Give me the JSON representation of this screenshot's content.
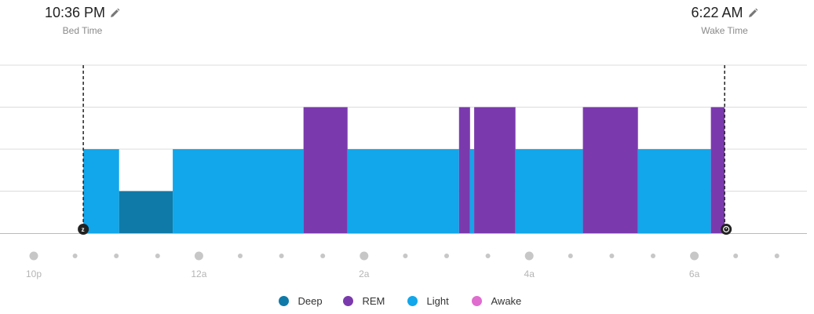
{
  "bed_time": {
    "value": "10:36 PM",
    "label": "Bed Time"
  },
  "wake_time": {
    "value": "6:22 AM",
    "label": "Wake Time"
  },
  "colors": {
    "deep": "#0f7aa8",
    "rem": "#7a3aad",
    "light": "#12a6ea",
    "awake": "#e06ccf",
    "grid": "#dcdcdc",
    "axis": "#bbbbbb",
    "tick_dot": "#c7c7c7"
  },
  "legend": [
    {
      "key": "deep",
      "label": "Deep",
      "color": "#0f7aa8"
    },
    {
      "key": "rem",
      "label": "REM",
      "color": "#7a3aad"
    },
    {
      "key": "light",
      "label": "Light",
      "color": "#12a6ea"
    },
    {
      "key": "awake",
      "label": "Awake",
      "color": "#e06ccf"
    }
  ],
  "chart_data": {
    "type": "bar",
    "title": "",
    "xlabel": "",
    "ylabel": "",
    "x_unit": "hours",
    "x_range": [
      "10p",
      "7:30a"
    ],
    "tick_labels": [
      "10p",
      "12a",
      "2a",
      "4a",
      "6a"
    ],
    "stage_levels": {
      "deep": 1,
      "light": 2,
      "rem": 3,
      "awake": 4
    },
    "bed_time": "10:36 PM",
    "wake_time": "6:22 AM",
    "segments": [
      {
        "stage": "light",
        "start": "10:36 PM",
        "end": "11:02 PM"
      },
      {
        "stage": "deep",
        "start": "11:02 PM",
        "end": "11:41 PM"
      },
      {
        "stage": "light",
        "start": "11:41 PM",
        "end": "1:16 AM"
      },
      {
        "stage": "rem",
        "start": "1:16 AM",
        "end": "1:48 AM"
      },
      {
        "stage": "light",
        "start": "1:48 AM",
        "end": "3:09 AM"
      },
      {
        "stage": "rem",
        "start": "3:09 AM",
        "end": "3:17 AM"
      },
      {
        "stage": "light",
        "start": "3:17 AM",
        "end": "3:20 AM"
      },
      {
        "stage": "rem",
        "start": "3:20 AM",
        "end": "3:50 AM"
      },
      {
        "stage": "light",
        "start": "3:50 AM",
        "end": "4:39 AM"
      },
      {
        "stage": "rem",
        "start": "4:39 AM",
        "end": "5:19 AM"
      },
      {
        "stage": "light",
        "start": "5:19 AM",
        "end": "6:12 AM"
      },
      {
        "stage": "rem",
        "start": "6:12 AM",
        "end": "6:22 AM"
      }
    ]
  }
}
